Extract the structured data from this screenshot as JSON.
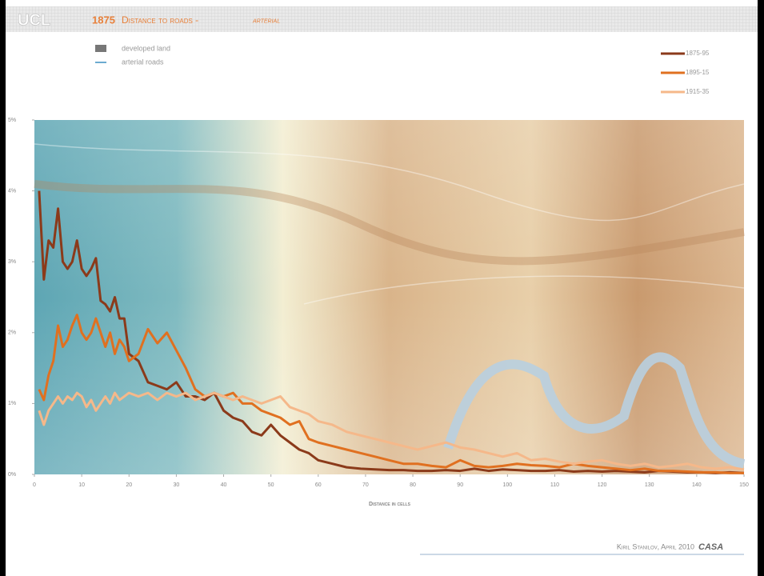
{
  "header": {
    "logo": "UCL",
    "year": "1875",
    "title": "Distance to roads -",
    "subtitle": "arterial"
  },
  "map_legend": [
    "developed land",
    "arterial roads"
  ],
  "footer": {
    "author": "Kiril Stanilov, April 2010",
    "org": "CASA"
  },
  "chart_data": {
    "type": "line",
    "xlabel": "Distance in cells",
    "x": [
      1,
      2,
      3,
      4,
      5,
      6,
      7,
      8,
      9,
      10,
      11,
      12,
      13,
      14,
      15,
      16,
      17,
      18,
      19,
      20,
      22,
      24,
      26,
      28,
      30,
      32,
      34,
      36,
      38,
      40,
      42,
      44,
      46,
      48,
      50,
      52,
      54,
      56,
      58,
      60,
      63,
      66,
      69,
      72,
      75,
      78,
      81,
      84,
      87,
      90,
      93,
      96,
      99,
      102,
      105,
      108,
      111,
      114,
      117,
      120,
      123,
      126,
      129,
      132,
      135,
      138,
      141,
      144,
      147,
      150
    ],
    "series": [
      {
        "name": "1875-95",
        "color": "#8b3a1a",
        "values": [
          4.0,
          2.75,
          3.3,
          3.2,
          3.75,
          3.0,
          2.9,
          3.0,
          3.3,
          2.9,
          2.8,
          2.9,
          3.05,
          2.45,
          2.4,
          2.3,
          2.5,
          2.2,
          2.2,
          1.7,
          1.6,
          1.3,
          1.25,
          1.2,
          1.3,
          1.1,
          1.1,
          1.05,
          1.15,
          0.9,
          0.8,
          0.75,
          0.6,
          0.55,
          0.7,
          0.55,
          0.45,
          0.35,
          0.3,
          0.2,
          0.15,
          0.1,
          0.08,
          0.07,
          0.06,
          0.06,
          0.05,
          0.05,
          0.06,
          0.05,
          0.08,
          0.05,
          0.07,
          0.06,
          0.05,
          0.05,
          0.06,
          0.04,
          0.05,
          0.04,
          0.05,
          0.04,
          0.03,
          0.05,
          0.04,
          0.03,
          0.03,
          0.02,
          0.03,
          0.02
        ]
      },
      {
        "name": "1895-15",
        "color": "#e07020",
        "values": [
          1.2,
          1.05,
          1.4,
          1.6,
          2.1,
          1.8,
          1.9,
          2.1,
          2.25,
          2.0,
          1.9,
          2.0,
          2.2,
          2.0,
          1.8,
          2.0,
          1.7,
          1.9,
          1.8,
          1.6,
          1.7,
          2.05,
          1.85,
          2.0,
          1.75,
          1.5,
          1.2,
          1.1,
          1.15,
          1.1,
          1.15,
          1.0,
          1.0,
          0.9,
          0.85,
          0.8,
          0.7,
          0.75,
          0.5,
          0.45,
          0.4,
          0.35,
          0.3,
          0.25,
          0.2,
          0.15,
          0.15,
          0.12,
          0.1,
          0.2,
          0.12,
          0.1,
          0.12,
          0.15,
          0.13,
          0.12,
          0.1,
          0.15,
          0.12,
          0.1,
          0.08,
          0.06,
          0.08,
          0.05,
          0.05,
          0.04,
          0.03,
          0.03,
          0.02,
          0.02
        ]
      },
      {
        "name": "1915-35",
        "color": "#f5b88a",
        "values": [
          0.9,
          0.7,
          0.9,
          1.0,
          1.1,
          1.0,
          1.1,
          1.05,
          1.15,
          1.1,
          0.95,
          1.05,
          0.9,
          1.0,
          1.1,
          1.0,
          1.15,
          1.05,
          1.1,
          1.15,
          1.1,
          1.15,
          1.05,
          1.15,
          1.1,
          1.15,
          1.05,
          1.1,
          1.15,
          1.1,
          1.05,
          1.1,
          1.05,
          1.0,
          1.05,
          1.1,
          0.95,
          0.9,
          0.85,
          0.75,
          0.7,
          0.6,
          0.55,
          0.5,
          0.45,
          0.4,
          0.35,
          0.4,
          0.45,
          0.38,
          0.35,
          0.3,
          0.25,
          0.3,
          0.2,
          0.22,
          0.18,
          0.15,
          0.18,
          0.2,
          0.15,
          0.12,
          0.15,
          0.1,
          0.12,
          0.15,
          0.1,
          0.08,
          0.1,
          0.07
        ]
      }
    ],
    "xlim": [
      0,
      150
    ],
    "xticks": [
      0,
      10,
      20,
      30,
      40,
      50,
      60,
      70,
      80,
      90,
      100,
      110,
      120,
      130,
      140,
      150
    ],
    "ylim": [
      0,
      5
    ],
    "yticks": [
      {
        "value": 0,
        "label": "0%"
      },
      {
        "value": 1,
        "label": "1%"
      },
      {
        "value": 2,
        "label": "2%"
      },
      {
        "value": 3,
        "label": "3%"
      },
      {
        "value": 4,
        "label": "4%"
      },
      {
        "value": 5,
        "label": "5%"
      }
    ],
    "legend": "top-right"
  }
}
